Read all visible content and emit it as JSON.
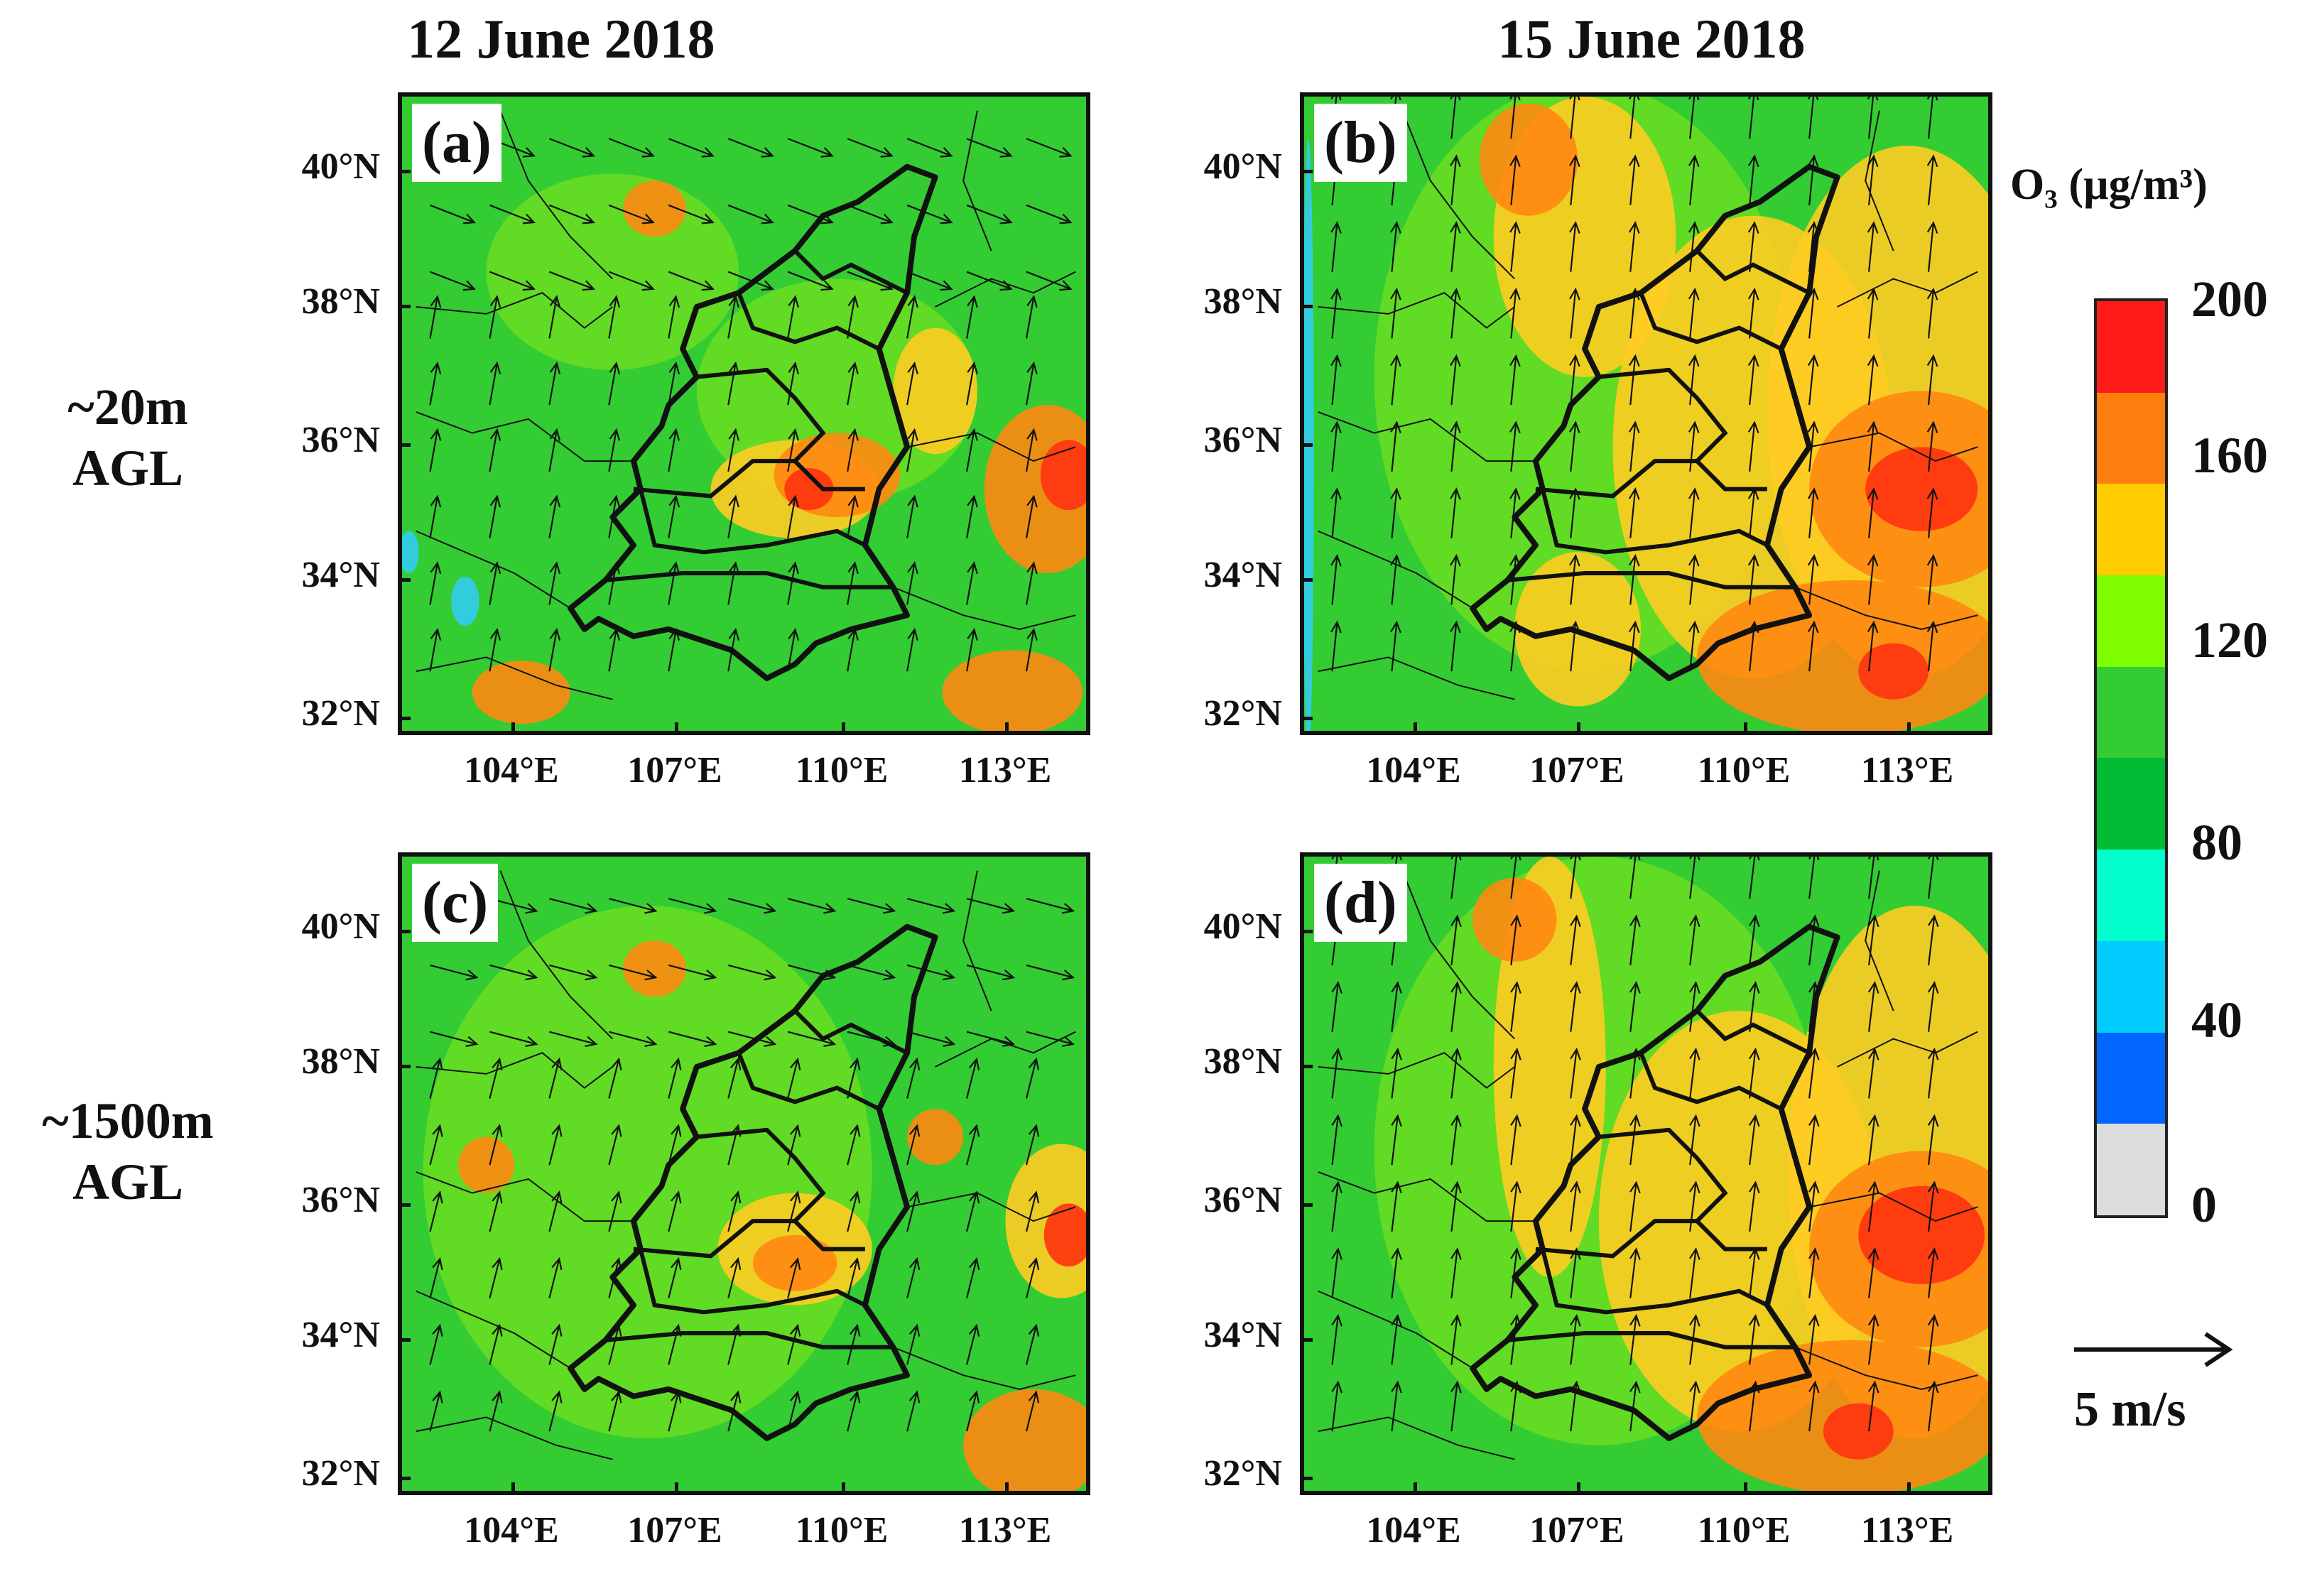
{
  "columns": [
    "12 June 2018",
    "15 June 2018"
  ],
  "rows": [
    "~20m\nAGL",
    "~1500m\nAGL"
  ],
  "rows_text": [
    [
      "~20m",
      "AGL"
    ],
    [
      "~1500m",
      "AGL"
    ]
  ],
  "panels": [
    {
      "label": "(a)",
      "date": "12 June 2018",
      "height": "~20m AGL"
    },
    {
      "label": "(b)",
      "date": "15 June 2018",
      "height": "~20m AGL"
    },
    {
      "label": "(c)",
      "date": "12 June 2018",
      "height": "~1500m AGL"
    },
    {
      "label": "(d)",
      "date": "15 June 2018",
      "height": "~1500m AGL"
    }
  ],
  "lat_ticks": [
    "40°N",
    "38°N",
    "36°N",
    "34°N",
    "32°N"
  ],
  "lon_ticks": [
    "104°E",
    "107°E",
    "110°E",
    "113°E"
  ],
  "colorbar": {
    "title": "O₃ (µg/m³)",
    "labels": [
      "200",
      "160",
      "120",
      "80",
      "40",
      "0"
    ],
    "colors": [
      "#ff1a1a",
      "#ff7f0e",
      "#ffcc00",
      "#7fff00",
      "#33cc33",
      "#00bb33",
      "#00ffcc",
      "#00ccff",
      "#0066ff",
      "#dddddd"
    ]
  },
  "reference_vector": {
    "label": "5 m/s"
  },
  "colors": {
    "green": "#33cc33",
    "light_green": "#66dd22",
    "yellow": "#ffcc22",
    "orange": "#ff8811",
    "red": "#ff3311",
    "cyan": "#33ccee",
    "boundary": "#111111"
  }
}
